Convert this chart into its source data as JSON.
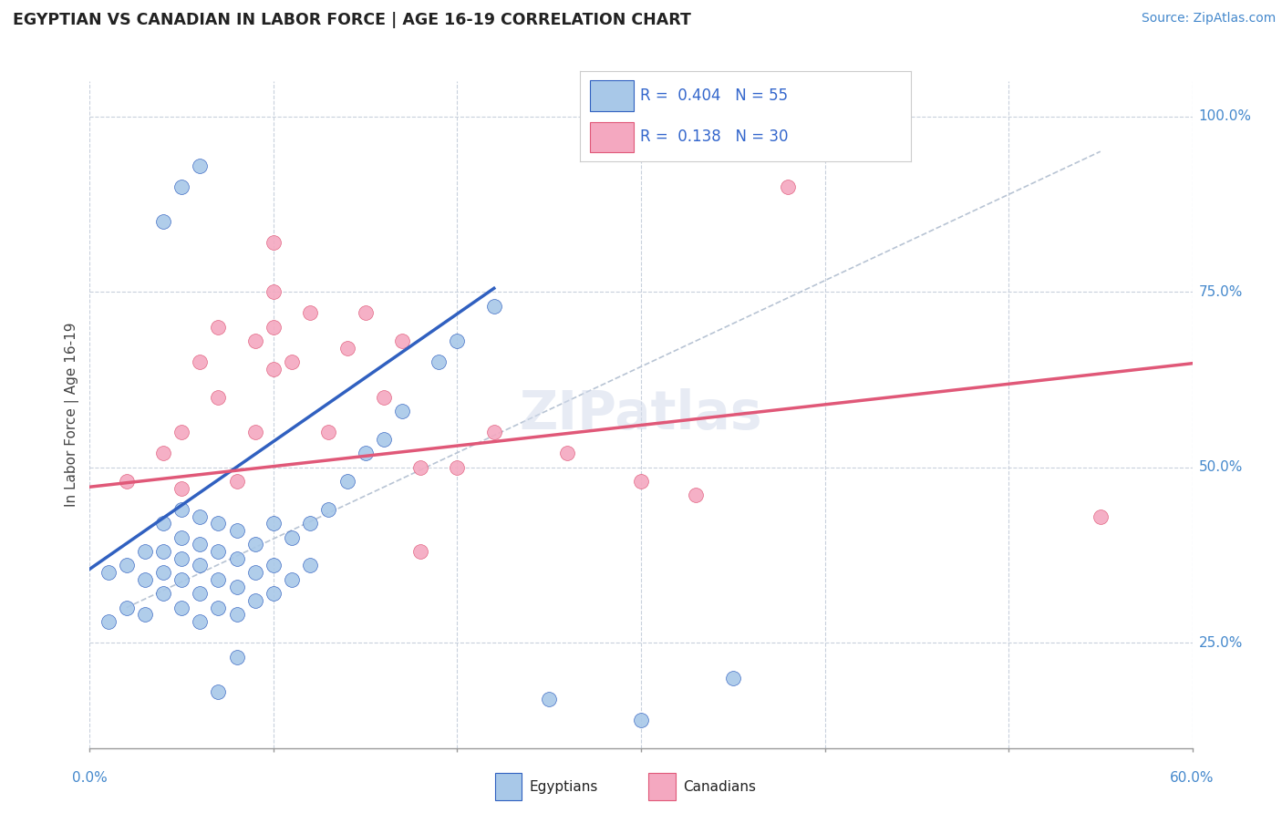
{
  "title": "EGYPTIAN VS CANADIAN IN LABOR FORCE | AGE 16-19 CORRELATION CHART",
  "source_text": "Source: ZipAtlas.com",
  "ylabel": "In Labor Force | Age 16-19",
  "ytick_labels": [
    "25.0%",
    "50.0%",
    "75.0%",
    "100.0%"
  ],
  "ytick_values": [
    0.25,
    0.5,
    0.75,
    1.0
  ],
  "xmin": 0.0,
  "xmax": 0.6,
  "ymin": 0.1,
  "ymax": 1.05,
  "r_egyptian": 0.404,
  "n_egyptian": 55,
  "r_canadian": 0.138,
  "n_canadian": 30,
  "color_egyptian": "#a8c8e8",
  "color_canadian": "#f4a8c0",
  "color_trendline_egyptian": "#3060c0",
  "color_trendline_canadian": "#e05878",
  "color_diagonal": "#c0c8d8",
  "watermark": "ZIPatlas",
  "legend_label_egyptian": "Egyptians",
  "legend_label_canadian": "Canadians",
  "egyptian_x": [
    0.01,
    0.01,
    0.02,
    0.02,
    0.03,
    0.03,
    0.03,
    0.04,
    0.04,
    0.04,
    0.04,
    0.05,
    0.05,
    0.05,
    0.05,
    0.05,
    0.06,
    0.06,
    0.06,
    0.06,
    0.06,
    0.07,
    0.07,
    0.07,
    0.07,
    0.08,
    0.08,
    0.08,
    0.08,
    0.09,
    0.09,
    0.09,
    0.1,
    0.1,
    0.1,
    0.11,
    0.11,
    0.12,
    0.12,
    0.13,
    0.14,
    0.15,
    0.16,
    0.17,
    0.19,
    0.2,
    0.22,
    0.25,
    0.3,
    0.35,
    0.04,
    0.05,
    0.06,
    0.07,
    0.08
  ],
  "egyptian_y": [
    0.35,
    0.28,
    0.36,
    0.3,
    0.38,
    0.34,
    0.29,
    0.35,
    0.32,
    0.38,
    0.42,
    0.3,
    0.34,
    0.37,
    0.4,
    0.44,
    0.28,
    0.32,
    0.36,
    0.39,
    0.43,
    0.3,
    0.34,
    0.38,
    0.42,
    0.29,
    0.33,
    0.37,
    0.41,
    0.31,
    0.35,
    0.39,
    0.32,
    0.36,
    0.42,
    0.34,
    0.4,
    0.36,
    0.42,
    0.44,
    0.48,
    0.52,
    0.54,
    0.58,
    0.65,
    0.68,
    0.73,
    0.17,
    0.14,
    0.2,
    0.85,
    0.9,
    0.93,
    0.18,
    0.23
  ],
  "canadian_x": [
    0.02,
    0.04,
    0.05,
    0.05,
    0.06,
    0.07,
    0.07,
    0.08,
    0.09,
    0.09,
    0.1,
    0.1,
    0.1,
    0.11,
    0.12,
    0.13,
    0.14,
    0.15,
    0.16,
    0.17,
    0.18,
    0.2,
    0.22,
    0.26,
    0.3,
    0.33,
    0.38,
    0.55,
    0.1,
    0.18
  ],
  "canadian_y": [
    0.48,
    0.52,
    0.47,
    0.55,
    0.65,
    0.6,
    0.7,
    0.48,
    0.55,
    0.68,
    0.64,
    0.7,
    0.75,
    0.65,
    0.72,
    0.55,
    0.67,
    0.72,
    0.6,
    0.68,
    0.5,
    0.5,
    0.55,
    0.52,
    0.48,
    0.46,
    0.9,
    0.43,
    0.82,
    0.38
  ],
  "trendline_egyptian_x0": 0.0,
  "trendline_egyptian_x1": 0.22,
  "trendline_canadian_x0": 0.0,
  "trendline_canadian_x1": 0.6,
  "trendline_egyptian_y0": 0.355,
  "trendline_egyptian_y1": 0.755,
  "trendline_canadian_y0": 0.472,
  "trendline_canadian_y1": 0.648
}
